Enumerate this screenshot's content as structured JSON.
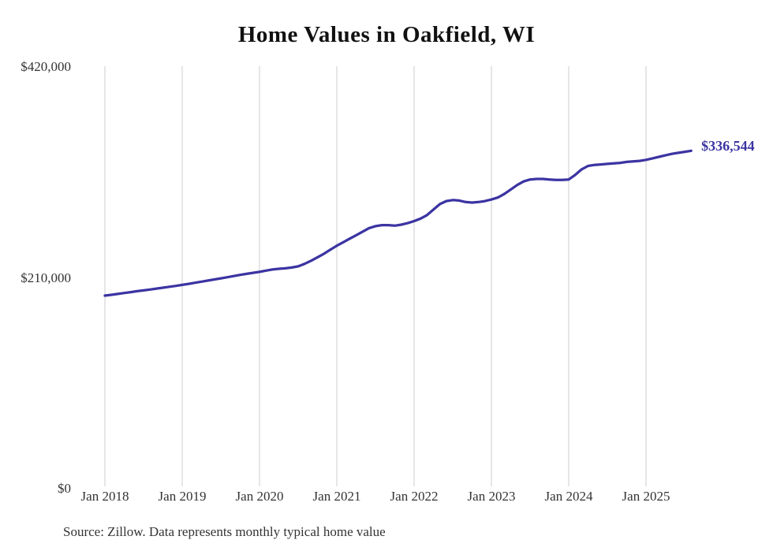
{
  "chart": {
    "title": "Home Values in Oakfield, WI",
    "final_value_label": "$336,544",
    "source_note": "Source: Zillow. Data represents monthly typical home value",
    "accent_color": "#3b34a2",
    "gridline_color": "#cccccc",
    "text_color": "#333333",
    "title_color": "#111111"
  },
  "chart_data": {
    "type": "line",
    "title": "Home Values in Oakfield, WI",
    "unit": "USD",
    "grid": "vertical-only",
    "legend": "none",
    "ylim": [
      0,
      420000
    ],
    "y_ticks": [
      {
        "label": "$0",
        "value": 0
      },
      {
        "label": "$210,000",
        "value": 210000
      },
      {
        "label": "$420,000",
        "value": 420000
      }
    ],
    "x_ticks": [
      "Jan 2018",
      "Jan 2019",
      "Jan 2020",
      "Jan 2021",
      "Jan 2022",
      "Jan 2023",
      "Jan 2024",
      "Jan 2025"
    ],
    "annotation": {
      "text": "$336,544",
      "position": "line-end"
    },
    "series": [
      {
        "name": "Monthly typical home value",
        "start_month": "2018-01",
        "end_month": "2025-08",
        "final_value": 336544,
        "months": [
          "2018-01",
          "2018-02",
          "2018-03",
          "2018-04",
          "2018-05",
          "2018-06",
          "2018-07",
          "2018-08",
          "2018-09",
          "2018-10",
          "2018-11",
          "2018-12",
          "2019-01",
          "2019-02",
          "2019-03",
          "2019-04",
          "2019-05",
          "2019-06",
          "2019-07",
          "2019-08",
          "2019-09",
          "2019-10",
          "2019-11",
          "2019-12",
          "2020-01",
          "2020-02",
          "2020-03",
          "2020-04",
          "2020-05",
          "2020-06",
          "2020-07",
          "2020-08",
          "2020-09",
          "2020-10",
          "2020-11",
          "2020-12",
          "2021-01",
          "2021-02",
          "2021-03",
          "2021-04",
          "2021-05",
          "2021-06",
          "2021-07",
          "2021-08",
          "2021-09",
          "2021-10",
          "2021-11",
          "2021-12",
          "2022-01",
          "2022-02",
          "2022-03",
          "2022-04",
          "2022-05",
          "2022-06",
          "2022-07",
          "2022-08",
          "2022-09",
          "2022-10",
          "2022-11",
          "2022-12",
          "2023-01",
          "2023-02",
          "2023-03",
          "2023-04",
          "2023-05",
          "2023-06",
          "2023-07",
          "2023-08",
          "2023-09",
          "2023-10",
          "2023-11",
          "2023-12",
          "2024-01",
          "2024-02",
          "2024-03",
          "2024-04",
          "2024-05",
          "2024-06",
          "2024-07",
          "2024-08",
          "2024-09",
          "2024-10",
          "2024-11",
          "2024-12",
          "2025-01",
          "2025-02",
          "2025-03",
          "2025-04",
          "2025-05",
          "2025-06",
          "2025-07",
          "2025-08"
        ],
        "values": [
          192300,
          193100,
          194000,
          194900,
          195800,
          196700,
          197500,
          198400,
          199300,
          200200,
          201100,
          202000,
          203000,
          204000,
          205100,
          206200,
          207300,
          208400,
          209500,
          210600,
          211800,
          213000,
          214000,
          215000,
          216000,
          217200,
          218300,
          219000,
          219500,
          220300,
          221500,
          224000,
          227000,
          230500,
          234000,
          238000,
          242000,
          245500,
          249000,
          252500,
          256000,
          259500,
          261500,
          262500,
          262500,
          262000,
          263000,
          264500,
          266500,
          269000,
          272500,
          278000,
          283500,
          286500,
          287500,
          287000,
          285500,
          285000,
          285500,
          286500,
          288000,
          290000,
          293500,
          298000,
          302500,
          306000,
          308000,
          308500,
          308500,
          308000,
          307500,
          307500,
          308000,
          312500,
          318000,
          321500,
          322500,
          323000,
          323500,
          324000,
          324500,
          325500,
          326000,
          326500,
          327500,
          329000,
          330500,
          332000,
          333500,
          334500,
          335500,
          336544
        ]
      }
    ]
  }
}
